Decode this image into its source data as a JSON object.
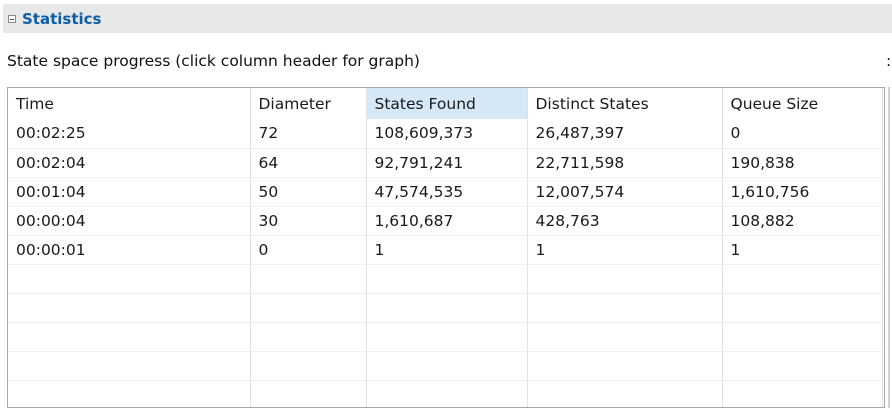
{
  "section": {
    "title": "Statistics"
  },
  "caption": "State space progress (click column header for graph)",
  "caption_right": ":",
  "table": {
    "columns": [
      "Time",
      "Diameter",
      "States Found",
      "Distinct States",
      "Queue Size"
    ],
    "active_column": "States Found",
    "rows": [
      [
        "00:02:25",
        "72",
        "108,609,373",
        "26,487,397",
        "0"
      ],
      [
        "00:02:04",
        "64",
        "92,791,241",
        "22,711,598",
        "190,838"
      ],
      [
        "00:01:04",
        "50",
        "47,574,535",
        "12,007,574",
        "1,610,756"
      ],
      [
        "00:00:04",
        "30",
        "1,610,687",
        "428,763",
        "108,882"
      ],
      [
        "00:00:01",
        "0",
        "1",
        "1",
        "1"
      ]
    ]
  },
  "colors": {
    "title": "#0a5fa8",
    "active_header": "#d5e8f7",
    "header_bar": "#e8e8e8"
  }
}
